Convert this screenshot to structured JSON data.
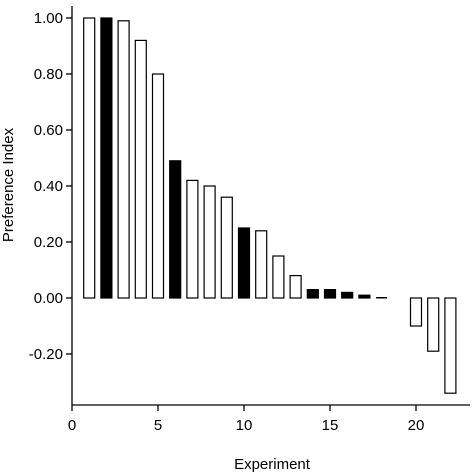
{
  "chart_data": {
    "type": "bar",
    "title": "",
    "xlabel": "Experiment",
    "ylabel": "Preference Index",
    "xlim": [
      0,
      22.5
    ],
    "ylim": [
      -0.35,
      1.0
    ],
    "xticks": [
      0,
      5,
      10,
      15,
      20
    ],
    "yticks": [
      -0.2,
      0.0,
      0.2,
      0.4,
      0.6,
      0.8,
      1.0
    ],
    "ytick_labels": [
      "-0.20",
      "0.00",
      "0.20",
      "0.40",
      "0.60",
      "0.80",
      "1.00"
    ],
    "xtick_labels": [
      "0",
      "5",
      "10",
      "15",
      "20"
    ],
    "grid": false,
    "legend": "none",
    "fill_colors": {
      "filled": "#000000",
      "open": "#ffffff"
    },
    "bars": [
      {
        "x": 1,
        "value": 1.0,
        "fill": "open"
      },
      {
        "x": 2,
        "value": 1.0,
        "fill": "filled"
      },
      {
        "x": 3,
        "value": 0.99,
        "fill": "open"
      },
      {
        "x": 4,
        "value": 0.92,
        "fill": "open"
      },
      {
        "x": 5,
        "value": 0.8,
        "fill": "open"
      },
      {
        "x": 6,
        "value": 0.49,
        "fill": "filled"
      },
      {
        "x": 7,
        "value": 0.42,
        "fill": "open"
      },
      {
        "x": 8,
        "value": 0.4,
        "fill": "open"
      },
      {
        "x": 9,
        "value": 0.36,
        "fill": "open"
      },
      {
        "x": 10,
        "value": 0.25,
        "fill": "filled"
      },
      {
        "x": 11,
        "value": 0.24,
        "fill": "open"
      },
      {
        "x": 12,
        "value": 0.15,
        "fill": "open"
      },
      {
        "x": 13,
        "value": 0.08,
        "fill": "open"
      },
      {
        "x": 14,
        "value": 0.03,
        "fill": "filled"
      },
      {
        "x": 15,
        "value": 0.03,
        "fill": "filled"
      },
      {
        "x": 16,
        "value": 0.02,
        "fill": "filled"
      },
      {
        "x": 17,
        "value": 0.01,
        "fill": "filled"
      },
      {
        "x": 18,
        "value": 0.0,
        "fill": "filled"
      },
      {
        "x": 20,
        "value": -0.1,
        "fill": "open"
      },
      {
        "x": 21,
        "value": -0.19,
        "fill": "open"
      },
      {
        "x": 22,
        "value": -0.34,
        "fill": "open"
      }
    ]
  }
}
